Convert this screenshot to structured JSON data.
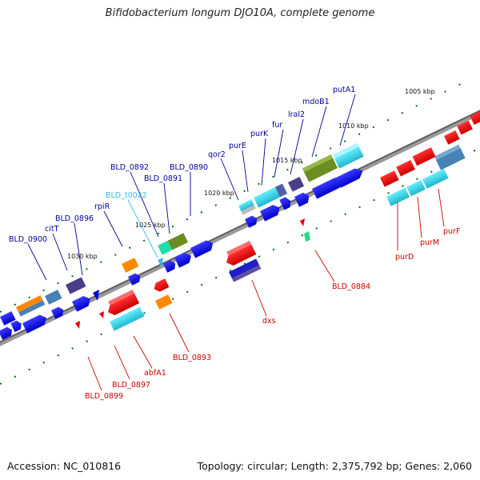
{
  "title": "Bifidobacterium longum DJO10A, complete genome",
  "footer": {
    "accession": "Accession: NC_010816",
    "summary": "Topology: circular; Length: 2,375,792 bp; Genes: 2,060"
  },
  "colors": {
    "blue": "#0000e0",
    "red": "#e60000",
    "cyan": "#22ccdd",
    "orange": "#ff8800",
    "purple": "#6050a0",
    "olive": "#6b8e23",
    "steel": "#4682b4",
    "green_tick": "#0a6a0a",
    "backbone": "#888888",
    "label_top": "#000099",
    "label_bottom": "#cc0000",
    "label_rna": "#00aadd"
  },
  "ticks": [
    {
      "label": "1005 kbp"
    },
    {
      "label": "1010 kbp"
    },
    {
      "label": "1015 kbp"
    },
    {
      "label": "1020 kbp"
    },
    {
      "label": "1025 kbp"
    },
    {
      "label": "1030 kbp"
    }
  ],
  "labels_top": [
    {
      "text": "putA1"
    },
    {
      "text": "mdoB1"
    },
    {
      "text": "lral2"
    },
    {
      "text": "fur"
    },
    {
      "text": "purK"
    },
    {
      "text": "purE"
    },
    {
      "text": "qor2"
    },
    {
      "text": "BLD_0890"
    },
    {
      "text": "BLD_0891"
    },
    {
      "text": "BLD_0892"
    },
    {
      "text": "BLD_t0022"
    },
    {
      "text": "rpiR"
    },
    {
      "text": "BLD_0896"
    },
    {
      "text": "citT"
    },
    {
      "text": "BLD_0900"
    }
  ],
  "labels_bottom": [
    {
      "text": "purF"
    },
    {
      "text": "purM"
    },
    {
      "text": "purD"
    },
    {
      "text": "BLD_0884"
    },
    {
      "text": "dxs"
    },
    {
      "text": "BLD_0893"
    },
    {
      "text": "abfA1"
    },
    {
      "text": "BLD_0897"
    },
    {
      "text": "BLD_0899"
    }
  ]
}
